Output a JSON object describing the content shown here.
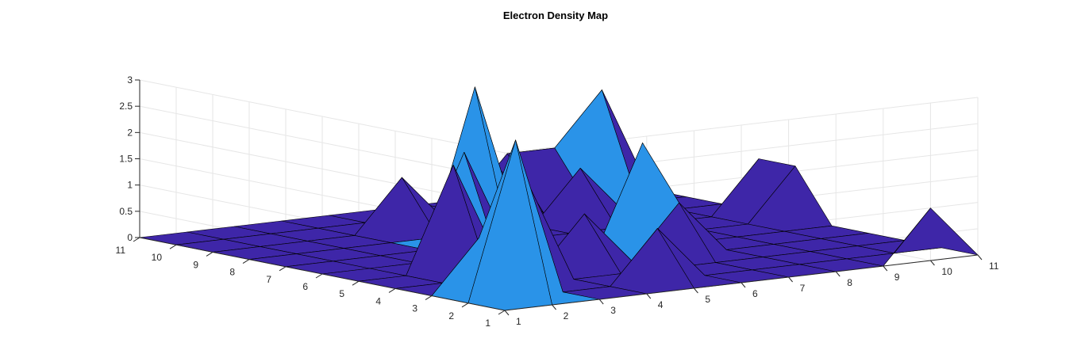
{
  "chart_data": {
    "type": "surface3d",
    "title": "Electron Density Map",
    "xlabel": "",
    "ylabel": "",
    "zlabel": "",
    "x_ticks": [
      1,
      2,
      3,
      4,
      5,
      6,
      7,
      8,
      9,
      10,
      11
    ],
    "y_ticks": [
      1,
      2,
      3,
      4,
      5,
      6,
      7,
      8,
      9,
      10,
      11
    ],
    "z_ticks": [
      "0",
      "0.5",
      "1",
      "1.5",
      "2",
      "2.5",
      "3"
    ],
    "xlim": [
      1,
      11
    ],
    "ylim": [
      1,
      11
    ],
    "zlim": [
      0,
      3
    ],
    "grid": true,
    "colormap": [
      "#3E26A8",
      "#2A93E8",
      "#7FCA57",
      "#F9FB0E"
    ],
    "z": [
      [
        0,
        0,
        0,
        0,
        0,
        0,
        0,
        0,
        0,
        1,
        0
      ],
      [
        0,
        3,
        0,
        0,
        1,
        0,
        0,
        0,
        0,
        0,
        0
      ],
      [
        0,
        1,
        2,
        0,
        0,
        0,
        0,
        0,
        0,
        0,
        0
      ],
      [
        0,
        0,
        0,
        0,
        1,
        0,
        1,
        0,
        0,
        0,
        0
      ],
      [
        0,
        0,
        2,
        0,
        0,
        0,
        2,
        0,
        0,
        0,
        0
      ],
      [
        0,
        0,
        0,
        2,
        0,
        0,
        0,
        0,
        0,
        0,
        1
      ],
      [
        0,
        0,
        0,
        0,
        3,
        0,
        0,
        0,
        0,
        0,
        1
      ],
      [
        0,
        0,
        0,
        0,
        0,
        1,
        0,
        1,
        0,
        0,
        0
      ],
      [
        0,
        0,
        0,
        0,
        1,
        0,
        1,
        0,
        0,
        0,
        0
      ],
      [
        0,
        0,
        0,
        0,
        0,
        0,
        0,
        1,
        1,
        2,
        0
      ],
      [
        0,
        0,
        0,
        0,
        0,
        0,
        0,
        0,
        0,
        0,
        0
      ]
    ]
  }
}
